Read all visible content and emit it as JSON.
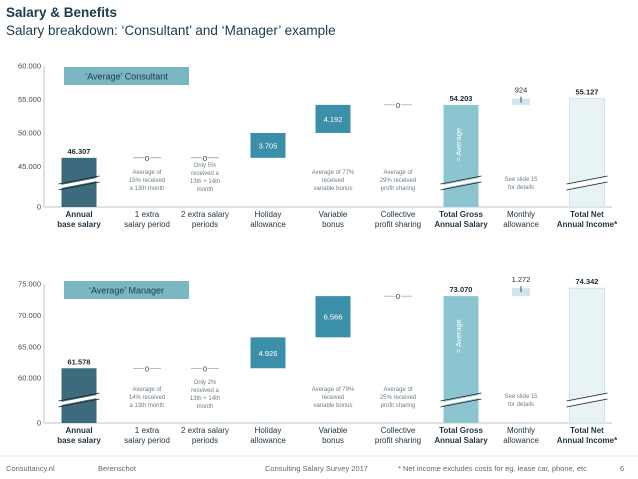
{
  "header": {
    "title": "Salary & Benefits",
    "subtitle": "Salary breakdown: ‘Consultant’ and ‘Manager’ example"
  },
  "footer": {
    "site": "Consultancy.nl",
    "partner": "Berenschot",
    "survey": "Consulting Salary Survey 2017",
    "note": "* Net income excludes costs for eg. lease car, phone, etc",
    "page": "6"
  },
  "colors": {
    "dark_teal": "#3d6a7c",
    "mid_teal": "#3c8fa8",
    "light_teal": "#8cc4d0",
    "pale_teal": "#cfe6ec",
    "net_fill": "#e8f3f6"
  },
  "chart_data": [
    {
      "type": "waterfall",
      "badge": "‘Average’ Consultant",
      "categories": [
        "Annual base salary",
        "1 extra salary period",
        "2 extra salary periods",
        "Holiday allowance",
        "Variable bonus",
        "Collective profit sharing",
        "Total Gross Annual Salary",
        "Monthly allowance",
        "Total Net Annual Income*"
      ],
      "category_lines": [
        [
          "Annual",
          "base salary"
        ],
        [
          "1 extra",
          "salary period"
        ],
        [
          "2 extra salary",
          "periods"
        ],
        [
          "Holiday",
          "allowance"
        ],
        [
          "Variable",
          "bonus"
        ],
        [
          "Collective",
          "profit sharing"
        ],
        [
          "Total Gross",
          "Annual Salary"
        ],
        [
          "Monthly",
          "allowance"
        ],
        [
          "Total Net",
          "Annual Income*"
        ]
      ],
      "bold_categories": [
        0,
        6,
        8
      ],
      "values": [
        46307,
        0,
        0,
        3705,
        4192,
        0,
        54203,
        924,
        55127
      ],
      "value_labels": [
        "46.307",
        "0",
        "0",
        "3.705",
        "4.192",
        "0",
        "54.203",
        "924",
        "55.127"
      ],
      "kinds": [
        "total",
        "step",
        "step",
        "step",
        "step",
        "step",
        "total",
        "step",
        "total"
      ],
      "y_ticks": [
        "60.000",
        "55.000",
        "50.000",
        "45.000",
        "0"
      ],
      "ylim": [
        43000,
        60000
      ],
      "axis_break": true,
      "total_bar_text": "= Average",
      "notes": [
        {
          "index": 1,
          "lines": [
            "Average of",
            "15% received",
            "a 13th month"
          ]
        },
        {
          "index": 2,
          "lines": [
            "Only 5%",
            "received a",
            "13th + 14th",
            "month"
          ]
        },
        {
          "index": 4,
          "lines": [
            "Average of 77%",
            "received",
            "variable bonus"
          ]
        },
        {
          "index": 5,
          "lines": [
            "Average of",
            "29% received",
            "profit sharing"
          ]
        },
        {
          "index": 7,
          "lines": [
            "See slide 15",
            "for details"
          ]
        }
      ]
    },
    {
      "type": "waterfall",
      "badge": "‘Average’ Manager",
      "categories": [
        "Annual base salary",
        "1 extra salary period",
        "2 extra salary periods",
        "Holiday allowance",
        "Variable bonus",
        "Collective profit sharing",
        "Total Gross Annual Salary",
        "Monthly allowance",
        "Total Net Annual Income*"
      ],
      "category_lines": [
        [
          "Annual",
          "base salary"
        ],
        [
          "1 extra",
          "salary period"
        ],
        [
          "2 extra salary",
          "periods"
        ],
        [
          "Holiday",
          "allowance"
        ],
        [
          "Variable",
          "bonus"
        ],
        [
          "Collective",
          "profit sharing"
        ],
        [
          "Total Gross",
          "Annual Salary"
        ],
        [
          "Monthly",
          "allowance"
        ],
        [
          "Total Net",
          "Annual Income*"
        ]
      ],
      "bold_categories": [
        0,
        6,
        8
      ],
      "values": [
        61578,
        0,
        0,
        4926,
        6566,
        0,
        73070,
        1272,
        74342
      ],
      "value_labels": [
        "61.578",
        "0",
        "0",
        "4.926",
        "6.566",
        "0",
        "73.070",
        "1.272",
        "74.342"
      ],
      "kinds": [
        "total",
        "step",
        "step",
        "step",
        "step",
        "step",
        "total",
        "step",
        "total"
      ],
      "y_ticks": [
        "75.000",
        "70.000",
        "65.000",
        "60.000",
        "0"
      ],
      "ylim": [
        57000,
        75000
      ],
      "axis_break": true,
      "total_bar_text": "= Average",
      "notes": [
        {
          "index": 1,
          "lines": [
            "Average of",
            "14% received",
            "a 13th month"
          ]
        },
        {
          "index": 2,
          "lines": [
            "Only 2%",
            "received a",
            "13th + 14th",
            "month"
          ]
        },
        {
          "index": 4,
          "lines": [
            "Average of 79%",
            "received",
            "variable bonus"
          ]
        },
        {
          "index": 5,
          "lines": [
            "Average of",
            "25% received",
            "profit sharing"
          ]
        },
        {
          "index": 7,
          "lines": [
            "See slide 15",
            "for details"
          ]
        }
      ]
    }
  ]
}
